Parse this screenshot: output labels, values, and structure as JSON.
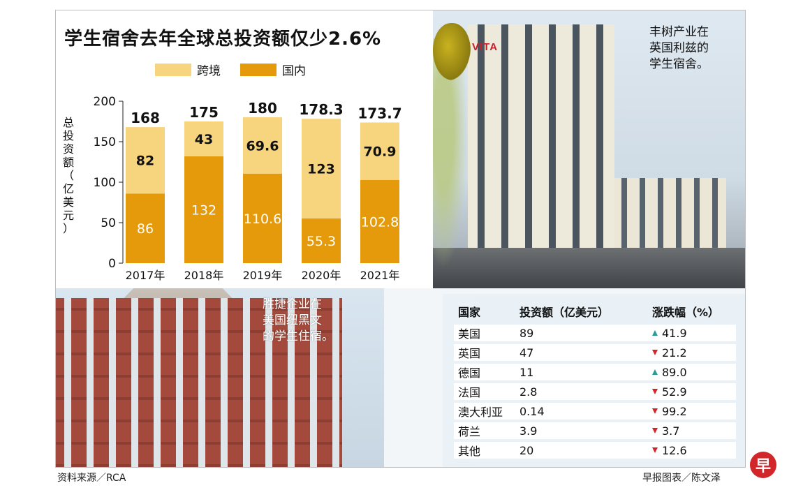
{
  "title": "学生宿舍去年全球总投资额仅少2.6%",
  "colors": {
    "cross_border": "#f7d47e",
    "domestic": "#e59a0c",
    "up": "#2a9c95",
    "down": "#d2272a"
  },
  "chart_data": {
    "type": "bar",
    "stacked": true,
    "title": "学生宿舍去年全球总投资额仅少2.6%",
    "categories": [
      "2017年",
      "2018年",
      "2019年",
      "2020年",
      "2021年"
    ],
    "series": [
      {
        "name": "国内",
        "values": [
          86,
          132,
          110.6,
          55.3,
          102.8
        ]
      },
      {
        "name": "跨境",
        "values": [
          82,
          43,
          69.6,
          123,
          70.9
        ]
      }
    ],
    "totals": [
      "168",
      "175",
      "180",
      "178.3",
      "173.7"
    ],
    "value_labels": {
      "国内": [
        "86",
        "132",
        "110.6",
        "55.3",
        "102.8"
      ],
      "跨境": [
        "82",
        "43",
        "69.6",
        "123",
        "70.9"
      ]
    },
    "xlabel": "",
    "ylabel": "总投资额（亿美元）",
    "ylim": [
      0,
      200
    ],
    "yticks": [
      0,
      50,
      100,
      150,
      200
    ],
    "legend_position": "top",
    "legend": [
      "跨境",
      "国内"
    ]
  },
  "captions": {
    "vita": "丰树产业在\n英国利兹的\n学生宿舍。",
    "nh": "胜捷企业在\n美国纽黑文\n的学生住宿。"
  },
  "photo_sign": "VITA",
  "table": {
    "headers": [
      "国家",
      "投资额（亿美元）",
      "涨跌幅（%）"
    ],
    "rows": [
      {
        "country": "美国",
        "amount": "89",
        "change": "41.9",
        "dir": "up"
      },
      {
        "country": "英国",
        "amount": "47",
        "change": "21.2",
        "dir": "down"
      },
      {
        "country": "德国",
        "amount": "11",
        "change": "89.0",
        "dir": "up"
      },
      {
        "country": "法国",
        "amount": "2.8",
        "change": "52.9",
        "dir": "down"
      },
      {
        "country": "澳大利亚",
        "amount": "0.14",
        "change": "99.2",
        "dir": "down"
      },
      {
        "country": "荷兰",
        "amount": "3.9",
        "change": "3.7",
        "dir": "down"
      },
      {
        "country": "其他",
        "amount": "20",
        "change": "12.6",
        "dir": "down"
      }
    ]
  },
  "footer": {
    "source": "资料来源／RCA",
    "credit": "早报图表／陈文泽",
    "logo": "早"
  }
}
